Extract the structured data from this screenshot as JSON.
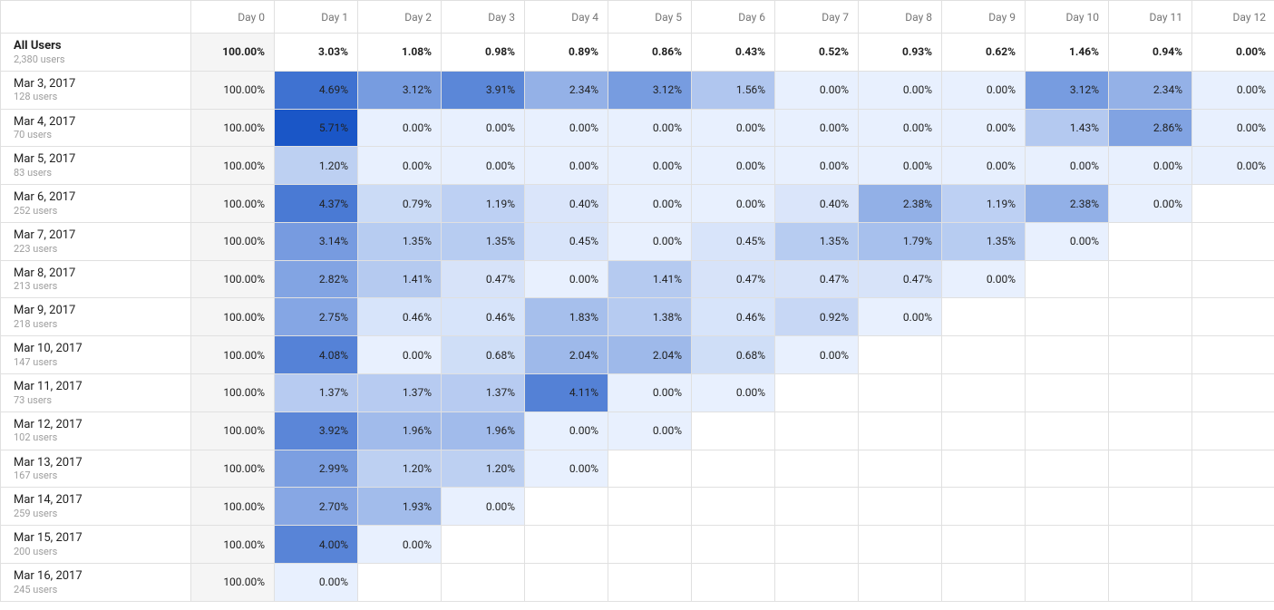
{
  "table": {
    "type": "cohort-heatmap",
    "num_days": 13,
    "header_prefix": "Day",
    "colors": {
      "border": "#e0e0e0",
      "header_text": "#757575",
      "subtext": "#9e9e9e",
      "day0_bg": "#f5f5f5",
      "heat_min": "#e8f0fe",
      "heat_max": "#1a56c7",
      "text_light_threshold": 3.8
    },
    "summary": {
      "label": "All Users",
      "sub": "2,380 users",
      "values": [
        "100.00%",
        "3.03%",
        "1.08%",
        "0.98%",
        "0.89%",
        "0.86%",
        "0.43%",
        "0.52%",
        "0.93%",
        "0.62%",
        "1.46%",
        "0.94%",
        "0.00%"
      ]
    },
    "rows": [
      {
        "label": "Mar 3, 2017",
        "sub": "128 users",
        "values": [
          100.0,
          4.69,
          3.12,
          3.91,
          2.34,
          3.12,
          1.56,
          0.0,
          0.0,
          0.0,
          3.12,
          2.34,
          0.0
        ]
      },
      {
        "label": "Mar 4, 2017",
        "sub": "70 users",
        "values": [
          100.0,
          5.71,
          0.0,
          0.0,
          0.0,
          0.0,
          0.0,
          0.0,
          0.0,
          0.0,
          1.43,
          2.86,
          0.0
        ]
      },
      {
        "label": "Mar 5, 2017",
        "sub": "83 users",
        "values": [
          100.0,
          1.2,
          0.0,
          0.0,
          0.0,
          0.0,
          0.0,
          0.0,
          0.0,
          0.0,
          0.0,
          0.0,
          0.0
        ]
      },
      {
        "label": "Mar 6, 2017",
        "sub": "252 users",
        "values": [
          100.0,
          4.37,
          0.79,
          1.19,
          0.4,
          0.0,
          0.0,
          0.4,
          2.38,
          1.19,
          2.38,
          0.0
        ]
      },
      {
        "label": "Mar 7, 2017",
        "sub": "223 users",
        "values": [
          100.0,
          3.14,
          1.35,
          1.35,
          0.45,
          0.0,
          0.45,
          1.35,
          1.79,
          1.35,
          0.0
        ]
      },
      {
        "label": "Mar 8, 2017",
        "sub": "213 users",
        "values": [
          100.0,
          2.82,
          1.41,
          0.47,
          0.0,
          1.41,
          0.47,
          0.47,
          0.47,
          0.0
        ]
      },
      {
        "label": "Mar 9, 2017",
        "sub": "218 users",
        "values": [
          100.0,
          2.75,
          0.46,
          0.46,
          1.83,
          1.38,
          0.46,
          0.92,
          0.0
        ]
      },
      {
        "label": "Mar 10, 2017",
        "sub": "147 users",
        "values": [
          100.0,
          4.08,
          0.0,
          0.68,
          2.04,
          2.04,
          0.68,
          0.0
        ]
      },
      {
        "label": "Mar 11, 2017",
        "sub": "73 users",
        "values": [
          100.0,
          1.37,
          1.37,
          1.37,
          4.11,
          0.0,
          0.0
        ]
      },
      {
        "label": "Mar 12, 2017",
        "sub": "102 users",
        "values": [
          100.0,
          3.92,
          1.96,
          1.96,
          0.0,
          0.0
        ]
      },
      {
        "label": "Mar 13, 2017",
        "sub": "167 users",
        "values": [
          100.0,
          2.99,
          1.2,
          1.2,
          0.0
        ]
      },
      {
        "label": "Mar 14, 2017",
        "sub": "259 users",
        "values": [
          100.0,
          2.7,
          1.93,
          0.0
        ]
      },
      {
        "label": "Mar 15, 2017",
        "sub": "200 users",
        "values": [
          100.0,
          4.0,
          0.0
        ]
      },
      {
        "label": "Mar 16, 2017",
        "sub": "245 users",
        "values": [
          100.0,
          0.0
        ]
      }
    ]
  }
}
